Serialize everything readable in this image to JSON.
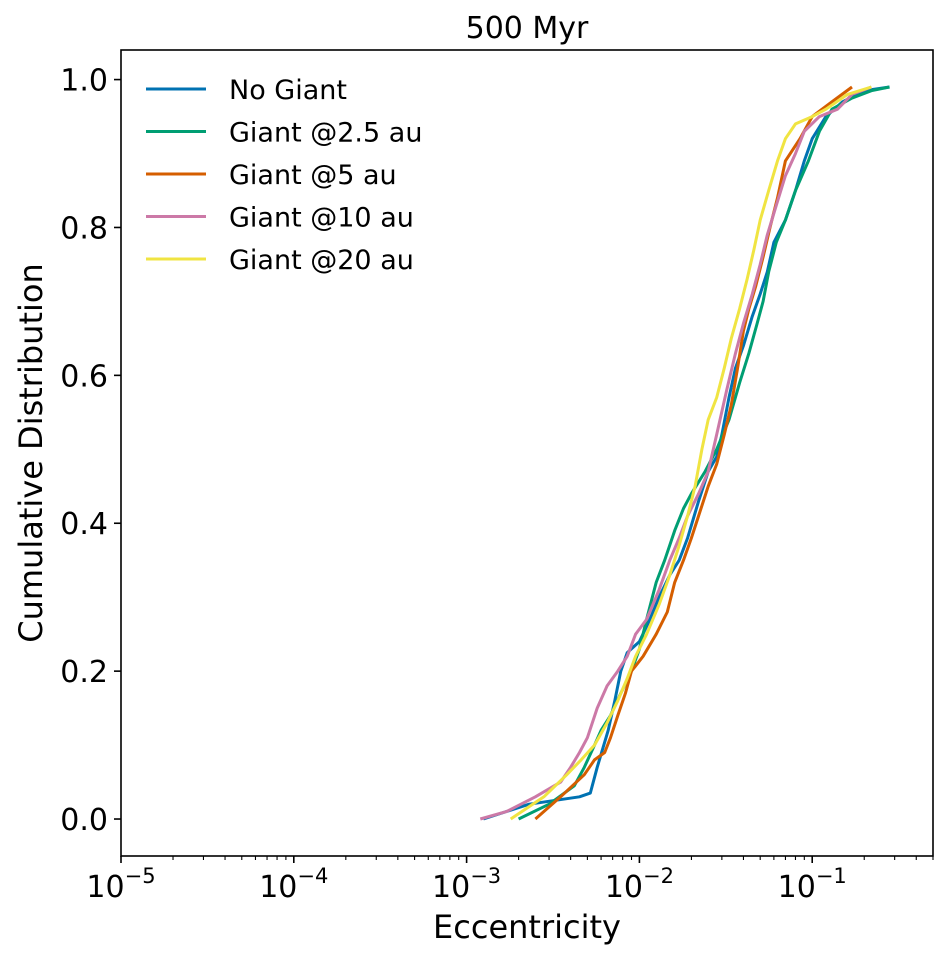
{
  "chart_data": {
    "type": "line",
    "title": "500 Myr",
    "xlabel": "Eccentricity",
    "ylabel": "Cumulative Distribution",
    "xscale": "log",
    "xlim": [
      1e-05,
      0.5
    ],
    "ylim": [
      -0.05,
      1.04
    ],
    "x_ticks": [
      {
        "value": 1e-05,
        "base": "10",
        "exp": "−5"
      },
      {
        "value": 0.0001,
        "base": "10",
        "exp": "−4"
      },
      {
        "value": 0.001,
        "base": "10",
        "exp": "−3"
      },
      {
        "value": 0.01,
        "base": "10",
        "exp": "−2"
      },
      {
        "value": 0.1,
        "base": "10",
        "exp": "−1"
      }
    ],
    "y_ticks": [
      {
        "value": 0.0,
        "label": "0.0"
      },
      {
        "value": 0.2,
        "label": "0.2"
      },
      {
        "value": 0.4,
        "label": "0.4"
      },
      {
        "value": 0.6,
        "label": "0.6"
      },
      {
        "value": 0.8,
        "label": "0.8"
      },
      {
        "value": 1.0,
        "label": "1.0"
      }
    ],
    "legend_position": "top-left",
    "series": [
      {
        "name": "No Giant",
        "color": "#0072b2",
        "points": [
          [
            0.00125,
            0.0
          ],
          [
            0.0023,
            0.02
          ],
          [
            0.0045,
            0.03
          ],
          [
            0.0052,
            0.035
          ],
          [
            0.0057,
            0.07
          ],
          [
            0.0066,
            0.12
          ],
          [
            0.0072,
            0.16
          ],
          [
            0.0078,
            0.2
          ],
          [
            0.0085,
            0.225
          ],
          [
            0.01,
            0.24
          ],
          [
            0.0115,
            0.27
          ],
          [
            0.013,
            0.3
          ],
          [
            0.015,
            0.33
          ],
          [
            0.017,
            0.35
          ],
          [
            0.019,
            0.38
          ],
          [
            0.022,
            0.43
          ],
          [
            0.025,
            0.47
          ],
          [
            0.028,
            0.49
          ],
          [
            0.03,
            0.52
          ],
          [
            0.033,
            0.57
          ],
          [
            0.036,
            0.61
          ],
          [
            0.04,
            0.64
          ],
          [
            0.045,
            0.68
          ],
          [
            0.05,
            0.71
          ],
          [
            0.055,
            0.74
          ],
          [
            0.06,
            0.78
          ],
          [
            0.07,
            0.81
          ],
          [
            0.08,
            0.85
          ],
          [
            0.09,
            0.89
          ],
          [
            0.1,
            0.92
          ],
          [
            0.12,
            0.95
          ],
          [
            0.15,
            0.97
          ],
          [
            0.2,
            0.985
          ],
          [
            0.28,
            0.99
          ]
        ]
      },
      {
        "name": "Giant @2.5 au",
        "color": "#009e73",
        "points": [
          [
            0.002,
            0.0
          ],
          [
            0.003,
            0.02
          ],
          [
            0.0042,
            0.045
          ],
          [
            0.0048,
            0.07
          ],
          [
            0.0055,
            0.1
          ],
          [
            0.006,
            0.12
          ],
          [
            0.0068,
            0.14
          ],
          [
            0.0078,
            0.17
          ],
          [
            0.009,
            0.2
          ],
          [
            0.01,
            0.23
          ],
          [
            0.011,
            0.27
          ],
          [
            0.0125,
            0.32
          ],
          [
            0.014,
            0.35
          ],
          [
            0.016,
            0.39
          ],
          [
            0.018,
            0.42
          ],
          [
            0.02,
            0.44
          ],
          [
            0.024,
            0.47
          ],
          [
            0.028,
            0.5
          ],
          [
            0.033,
            0.54
          ],
          [
            0.038,
            0.59
          ],
          [
            0.043,
            0.63
          ],
          [
            0.048,
            0.67
          ],
          [
            0.052,
            0.7
          ],
          [
            0.056,
            0.74
          ],
          [
            0.062,
            0.78
          ],
          [
            0.07,
            0.81
          ],
          [
            0.08,
            0.85
          ],
          [
            0.095,
            0.89
          ],
          [
            0.11,
            0.93
          ],
          [
            0.13,
            0.96
          ],
          [
            0.17,
            0.975
          ],
          [
            0.22,
            0.985
          ],
          [
            0.28,
            0.99
          ]
        ]
      },
      {
        "name": "Giant @5 au",
        "color": "#d55e00",
        "points": [
          [
            0.0025,
            0.0
          ],
          [
            0.0035,
            0.03
          ],
          [
            0.0048,
            0.06
          ],
          [
            0.0055,
            0.08
          ],
          [
            0.0063,
            0.09
          ],
          [
            0.0068,
            0.11
          ],
          [
            0.0075,
            0.14
          ],
          [
            0.0083,
            0.17
          ],
          [
            0.009,
            0.2
          ],
          [
            0.0105,
            0.22
          ],
          [
            0.0125,
            0.25
          ],
          [
            0.0145,
            0.28
          ],
          [
            0.016,
            0.32
          ],
          [
            0.018,
            0.35
          ],
          [
            0.02,
            0.38
          ],
          [
            0.022,
            0.41
          ],
          [
            0.025,
            0.45
          ],
          [
            0.028,
            0.48
          ],
          [
            0.031,
            0.52
          ],
          [
            0.034,
            0.56
          ],
          [
            0.037,
            0.61
          ],
          [
            0.04,
            0.66
          ],
          [
            0.043,
            0.69
          ],
          [
            0.047,
            0.72
          ],
          [
            0.052,
            0.76
          ],
          [
            0.057,
            0.8
          ],
          [
            0.063,
            0.84
          ],
          [
            0.07,
            0.89
          ],
          [
            0.085,
            0.92
          ],
          [
            0.1,
            0.95
          ],
          [
            0.13,
            0.97
          ],
          [
            0.17,
            0.99
          ]
        ]
      },
      {
        "name": "Giant @10 au",
        "color": "#cc79a7",
        "points": [
          [
            0.0012,
            0.0
          ],
          [
            0.0017,
            0.01
          ],
          [
            0.0025,
            0.03
          ],
          [
            0.0035,
            0.05
          ],
          [
            0.004,
            0.07
          ],
          [
            0.0045,
            0.09
          ],
          [
            0.005,
            0.11
          ],
          [
            0.0057,
            0.15
          ],
          [
            0.0065,
            0.18
          ],
          [
            0.0075,
            0.2
          ],
          [
            0.0085,
            0.22
          ],
          [
            0.0095,
            0.25
          ],
          [
            0.011,
            0.27
          ],
          [
            0.013,
            0.31
          ],
          [
            0.015,
            0.35
          ],
          [
            0.017,
            0.38
          ],
          [
            0.019,
            0.41
          ],
          [
            0.022,
            0.44
          ],
          [
            0.025,
            0.47
          ],
          [
            0.028,
            0.52
          ],
          [
            0.032,
            0.58
          ],
          [
            0.036,
            0.63
          ],
          [
            0.04,
            0.67
          ],
          [
            0.045,
            0.71
          ],
          [
            0.05,
            0.75
          ],
          [
            0.055,
            0.79
          ],
          [
            0.062,
            0.83
          ],
          [
            0.07,
            0.87
          ],
          [
            0.08,
            0.9
          ],
          [
            0.09,
            0.93
          ],
          [
            0.11,
            0.95
          ],
          [
            0.14,
            0.96
          ],
          [
            0.17,
            0.98
          ],
          [
            0.22,
            0.99
          ]
        ]
      },
      {
        "name": "Giant @20 au",
        "color": "#f0e442",
        "points": [
          [
            0.0018,
            0.0
          ],
          [
            0.0028,
            0.03
          ],
          [
            0.0038,
            0.06
          ],
          [
            0.0046,
            0.08
          ],
          [
            0.0055,
            0.1
          ],
          [
            0.0065,
            0.13
          ],
          [
            0.0075,
            0.16
          ],
          [
            0.0085,
            0.19
          ],
          [
            0.0095,
            0.22
          ],
          [
            0.011,
            0.25
          ],
          [
            0.013,
            0.29
          ],
          [
            0.015,
            0.33
          ],
          [
            0.017,
            0.37
          ],
          [
            0.019,
            0.41
          ],
          [
            0.021,
            0.45
          ],
          [
            0.023,
            0.5
          ],
          [
            0.025,
            0.54
          ],
          [
            0.028,
            0.57
          ],
          [
            0.031,
            0.61
          ],
          [
            0.034,
            0.65
          ],
          [
            0.038,
            0.69
          ],
          [
            0.042,
            0.73
          ],
          [
            0.046,
            0.77
          ],
          [
            0.05,
            0.81
          ],
          [
            0.056,
            0.85
          ],
          [
            0.063,
            0.89
          ],
          [
            0.07,
            0.92
          ],
          [
            0.08,
            0.94
          ],
          [
            0.1,
            0.95
          ],
          [
            0.12,
            0.96
          ],
          [
            0.16,
            0.98
          ],
          [
            0.22,
            0.99
          ]
        ]
      }
    ]
  }
}
